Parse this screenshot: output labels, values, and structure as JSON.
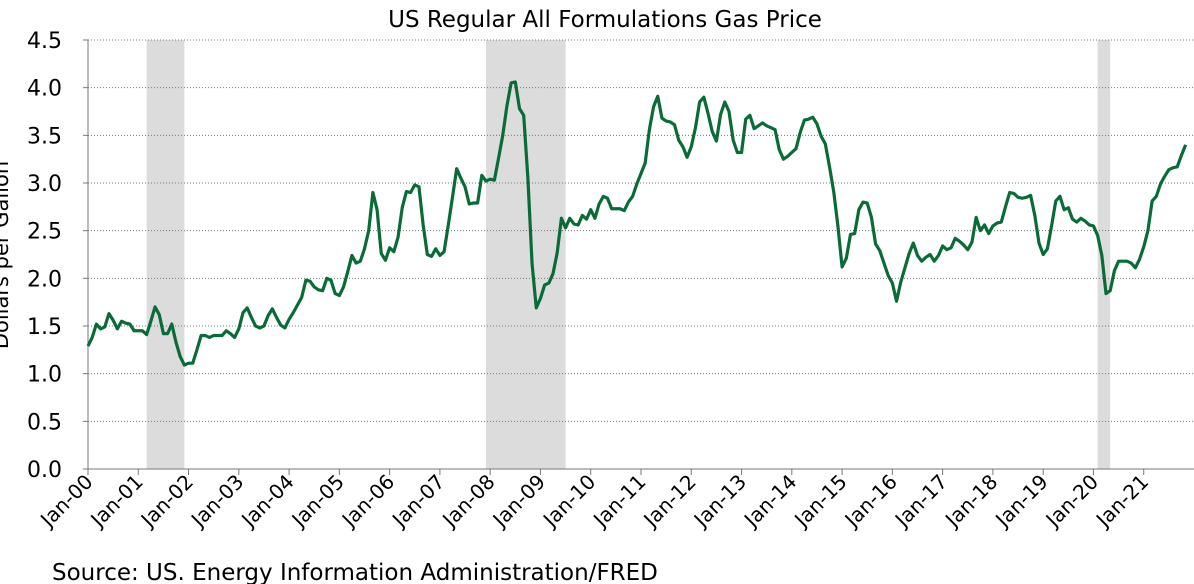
{
  "chart_data": {
    "type": "line",
    "title": "US Regular All Formulations Gas Price",
    "y_label": "Dollars per Gallon",
    "source": "Source: US. Energy Information Administration/FRED",
    "color": "#0b6b38",
    "grid": true,
    "ylim": [
      0,
      4.5
    ],
    "yticks": [
      {
        "value": 0,
        "label": "0.0"
      },
      0.5,
      {
        "value": 1,
        "label": "1.0"
      },
      1.5,
      {
        "value": 2,
        "label": "2.0"
      },
      2.5,
      {
        "value": 3,
        "label": "3.0"
      },
      3.5,
      {
        "value": 4,
        "label": "4.0"
      },
      4.5
    ],
    "recessions": [
      {
        "start": 14,
        "end": 22
      },
      {
        "start": 95,
        "end": 113
      },
      {
        "start": 241,
        "end": 243
      }
    ],
    "categories": [
      "Jan-00",
      null,
      null,
      null,
      null,
      null,
      null,
      null,
      null,
      null,
      null,
      null,
      "Jan-01",
      null,
      null,
      null,
      null,
      null,
      null,
      null,
      null,
      null,
      null,
      null,
      "Jan-02",
      null,
      null,
      null,
      null,
      null,
      null,
      null,
      null,
      null,
      null,
      null,
      "Jan-03",
      null,
      null,
      null,
      null,
      null,
      null,
      null,
      null,
      null,
      null,
      null,
      "Jan-04",
      null,
      null,
      null,
      null,
      null,
      null,
      null,
      null,
      null,
      null,
      null,
      "Jan-05",
      null,
      null,
      null,
      null,
      null,
      null,
      null,
      null,
      null,
      null,
      null,
      "Jan-06",
      null,
      null,
      null,
      null,
      null,
      null,
      null,
      null,
      null,
      null,
      null,
      "Jan-07",
      null,
      null,
      null,
      null,
      null,
      null,
      null,
      null,
      null,
      null,
      null,
      "Jan-08",
      null,
      null,
      null,
      null,
      null,
      null,
      null,
      null,
      null,
      null,
      null,
      "Jan-09",
      null,
      null,
      null,
      null,
      null,
      null,
      null,
      null,
      null,
      null,
      null,
      "Jan-10",
      null,
      null,
      null,
      null,
      null,
      null,
      null,
      null,
      null,
      null,
      null,
      "Jan-11",
      null,
      null,
      null,
      null,
      null,
      null,
      null,
      null,
      null,
      null,
      null,
      "Jan-12",
      null,
      null,
      null,
      null,
      null,
      null,
      null,
      null,
      null,
      null,
      null,
      "Jan-13",
      null,
      null,
      null,
      null,
      null,
      null,
      null,
      null,
      null,
      null,
      null,
      "Jan-14",
      null,
      null,
      null,
      null,
      null,
      null,
      null,
      null,
      null,
      null,
      null,
      "Jan-15",
      null,
      null,
      null,
      null,
      null,
      null,
      null,
      null,
      null,
      null,
      null,
      "Jan-16",
      null,
      null,
      null,
      null,
      null,
      null,
      null,
      null,
      null,
      null,
      null,
      "Jan-17",
      null,
      null,
      null,
      null,
      null,
      null,
      null,
      null,
      null,
      null,
      null,
      "Jan-18",
      null,
      null,
      null,
      null,
      null,
      null,
      null,
      null,
      null,
      null,
      null,
      "Jan-19",
      null,
      null,
      null,
      null,
      null,
      null,
      null,
      null,
      null,
      null,
      null,
      "Jan-20",
      null,
      null,
      null,
      null,
      null,
      null,
      null,
      null,
      null,
      null,
      null,
      "Jan-21",
      null,
      null,
      null,
      null,
      null,
      null,
      null,
      null,
      null,
      null
    ],
    "values": [
      1.29,
      1.38,
      1.52,
      1.47,
      1.49,
      1.63,
      1.56,
      1.47,
      1.55,
      1.53,
      1.52,
      1.45,
      1.45,
      1.45,
      1.41,
      1.55,
      1.7,
      1.62,
      1.42,
      1.42,
      1.52,
      1.33,
      1.18,
      1.09,
      1.11,
      1.11,
      1.25,
      1.4,
      1.4,
      1.38,
      1.4,
      1.4,
      1.4,
      1.45,
      1.42,
      1.38,
      1.47,
      1.64,
      1.69,
      1.59,
      1.5,
      1.48,
      1.5,
      1.61,
      1.68,
      1.59,
      1.51,
      1.48,
      1.57,
      1.64,
      1.72,
      1.8,
      1.98,
      1.97,
      1.91,
      1.88,
      1.87,
      2.0,
      1.98,
      1.84,
      1.82,
      1.91,
      2.07,
      2.24,
      2.16,
      2.18,
      2.31,
      2.5,
      2.9,
      2.72,
      2.26,
      2.19,
      2.32,
      2.28,
      2.43,
      2.74,
      2.91,
      2.9,
      2.98,
      2.96,
      2.56,
      2.25,
      2.23,
      2.31,
      2.24,
      2.28,
      2.56,
      2.85,
      3.15,
      3.05,
      2.96,
      2.78,
      2.79,
      2.79,
      3.08,
      3.02,
      3.04,
      3.03,
      3.26,
      3.5,
      3.81,
      4.05,
      4.06,
      3.78,
      3.71,
      3.05,
      2.15,
      1.69,
      1.79,
      1.93,
      1.95,
      2.05,
      2.27,
      2.63,
      2.53,
      2.63,
      2.57,
      2.56,
      2.66,
      2.62,
      2.72,
      2.63,
      2.78,
      2.86,
      2.84,
      2.73,
      2.73,
      2.73,
      2.71,
      2.8,
      2.86,
      2.99,
      3.1,
      3.21,
      3.56,
      3.8,
      3.91,
      3.68,
      3.65,
      3.64,
      3.61,
      3.45,
      3.38,
      3.27,
      3.38,
      3.58,
      3.85,
      3.9,
      3.73,
      3.54,
      3.44,
      3.72,
      3.85,
      3.75,
      3.45,
      3.32,
      3.32,
      3.67,
      3.71,
      3.57,
      3.6,
      3.63,
      3.6,
      3.58,
      3.56,
      3.35,
      3.25,
      3.28,
      3.32,
      3.36,
      3.53,
      3.66,
      3.67,
      3.69,
      3.62,
      3.49,
      3.41,
      3.17,
      2.91,
      2.55,
      2.12,
      2.21,
      2.46,
      2.47,
      2.72,
      2.8,
      2.79,
      2.64,
      2.36,
      2.29,
      2.16,
      2.03,
      1.95,
      1.76,
      1.96,
      2.11,
      2.26,
      2.37,
      2.24,
      2.18,
      2.22,
      2.25,
      2.18,
      2.24,
      2.34,
      2.3,
      2.32,
      2.42,
      2.39,
      2.35,
      2.3,
      2.38,
      2.64,
      2.5,
      2.56,
      2.47,
      2.55,
      2.58,
      2.59,
      2.75,
      2.9,
      2.89,
      2.85,
      2.84,
      2.85,
      2.87,
      2.66,
      2.37,
      2.25,
      2.31,
      2.55,
      2.81,
      2.86,
      2.72,
      2.74,
      2.62,
      2.59,
      2.63,
      2.6,
      2.56,
      2.55,
      2.45,
      2.24,
      1.84,
      1.87,
      2.08,
      2.18,
      2.18,
      2.18,
      2.16,
      2.11,
      2.2,
      2.33,
      2.5,
      2.81,
      2.86,
      2.99,
      3.07,
      3.14,
      3.16,
      3.17,
      3.29,
      3.4
    ]
  }
}
